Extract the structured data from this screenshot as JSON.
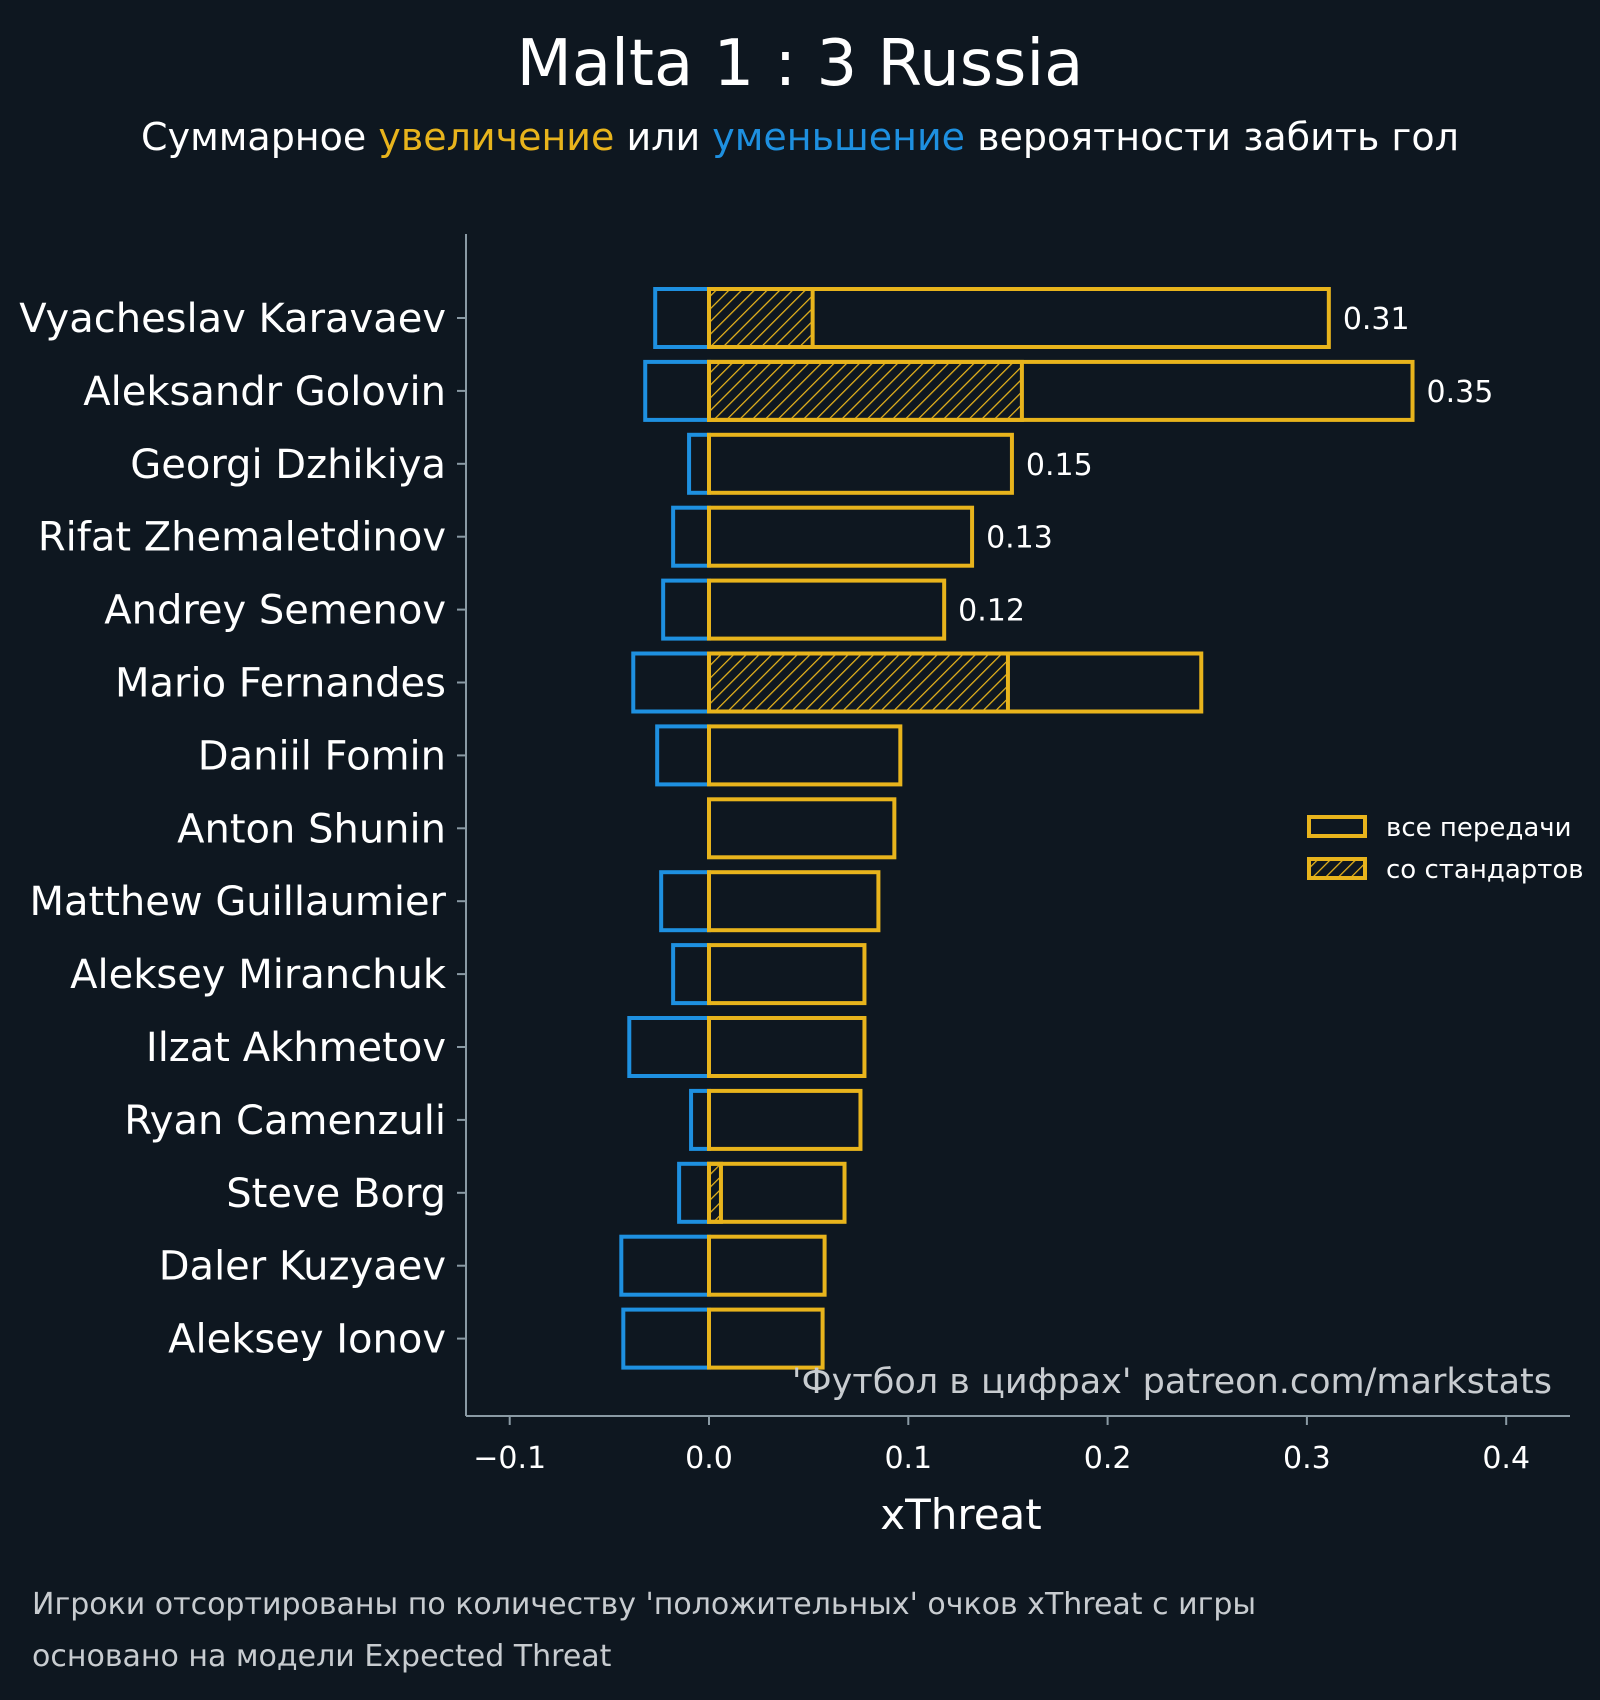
{
  "title": "Malta 1 : 3 Russia",
  "subtitle": {
    "part1": "Суммарное ",
    "increase": "увеличение",
    "part2": " или ",
    "decrease": "уменьшение",
    "part3": " вероятности забить гол"
  },
  "colors": {
    "background": "#0e1720",
    "increase": "#e8b41c",
    "decrease": "#1e90e0",
    "axis": "#8a9aa4",
    "text": "#ffffff",
    "footnote": "#c8ccd0"
  },
  "watermark": "'Футбол в цифрах' patreon.com/markstats",
  "footnote": [
    "Игроки отсортированы по количеству 'положительных' очков xThreat с игры",
    "основано на модели Expected Threat"
  ],
  "chart_data": {
    "type": "bar",
    "orientation": "horizontal",
    "xlabel": "xThreat",
    "ylabel": "",
    "xlim": [
      -0.122,
      0.432
    ],
    "xticks": [
      -0.1,
      0.0,
      0.1,
      0.2,
      0.3,
      0.4
    ],
    "xtick_labels": [
      "−0.1",
      "0.0",
      "0.1",
      "0.2",
      "0.3",
      "0.4"
    ],
    "grid": false,
    "legend_position": "right",
    "legend": [
      {
        "label": "все передачи",
        "style": "outline"
      },
      {
        "label": "со стандартов",
        "style": "hatched"
      }
    ],
    "categories": [
      "Vyacheslav Karavaev",
      "Aleksandr Golovin",
      "Georgi Dzhikiya",
      "Rifat Zhemaletdinov",
      "Andrey Semenov",
      "Mario Fernandes",
      "Daniil Fomin",
      "Anton Shunin",
      "Matthew Guillaumier",
      "Aleksey Miranchuk",
      "Ilzat Akhmetov",
      "Ryan Camenzuli",
      "Steve Borg",
      "Daler Kuzyaev",
      "Aleksey Ionov"
    ],
    "series": [
      {
        "name": "все передачи",
        "values": [
          0.311,
          0.353,
          0.152,
          0.132,
          0.118,
          0.247,
          0.096,
          0.093,
          0.085,
          0.078,
          0.078,
          0.076,
          0.068,
          0.058,
          0.057
        ]
      },
      {
        "name": "со стандартов",
        "values": [
          0.052,
          0.157,
          0.0,
          0.0,
          0.0,
          0.15,
          0.0,
          0.0,
          0.0,
          0.0,
          0.0,
          0.0,
          0.006,
          0.0,
          0.0
        ]
      },
      {
        "values": [
          -0.027,
          -0.032,
          -0.01,
          -0.018,
          -0.023,
          -0.038,
          -0.026,
          0.0,
          -0.024,
          -0.018,
          -0.04,
          -0.009,
          -0.015,
          -0.044,
          -0.043
        ]
      }
    ],
    "data_labels": [
      "0.31",
      "0.35",
      "0.15",
      "0.13",
      "0.12",
      "",
      "",
      "",
      "",
      "",
      "",
      "",
      "",
      "",
      ""
    ]
  }
}
